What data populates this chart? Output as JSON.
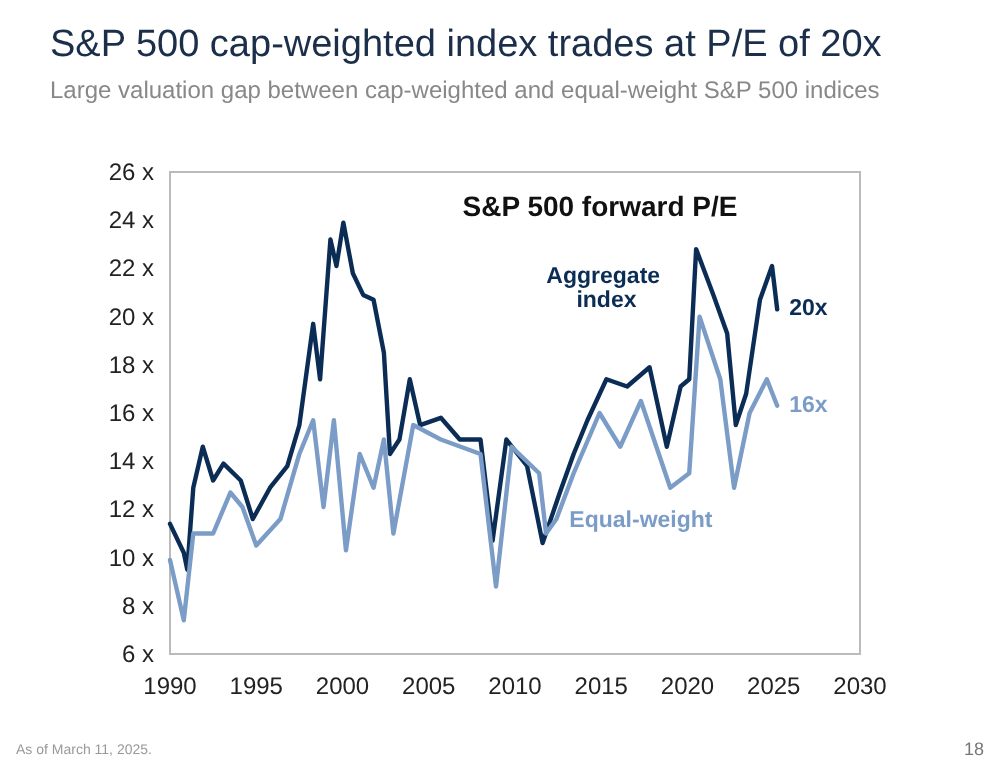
{
  "chart_data": {
    "type": "line",
    "title": "S&P 500 cap-weighted index trades at P/E of 20x",
    "subtitle": "Large valuation gap between cap-weighted and equal-weight S&P 500 indices",
    "xlim": [
      1990,
      2030
    ],
    "xticks": [
      1990,
      1995,
      2000,
      2005,
      2010,
      2015,
      2020,
      2025,
      2030
    ],
    "ylim": [
      6,
      26
    ],
    "yticks": [
      {
        "value": 6,
        "label": "6 x"
      },
      {
        "value": 8,
        "label": "8 x"
      },
      {
        "value": 10,
        "label": "10 x"
      },
      {
        "value": 12,
        "label": "12 x"
      },
      {
        "value": 14,
        "label": "14 x"
      },
      {
        "value": 16,
        "label": "16 x"
      },
      {
        "value": 18,
        "label": "18 x"
      },
      {
        "value": 20,
        "label": "20 x"
      },
      {
        "value": 22,
        "label": "22 x"
      },
      {
        "value": 24,
        "label": "24 x"
      },
      {
        "value": 26,
        "label": "26 x"
      }
    ],
    "grid": false,
    "marker": "none",
    "line_style": "solid",
    "series": [
      {
        "name": "Aggregate index",
        "color": "#0b2d55",
        "x": [
          1990.0,
          1990.8,
          1991.0,
          1991.35,
          1991.9,
          1992.5,
          1993.1,
          1994.1,
          1994.8,
          1995.8,
          1996.8,
          1997.5,
          1998.3,
          1998.7,
          1999.3,
          1999.65,
          2000.05,
          2000.6,
          2001.2,
          2001.8,
          2002.4,
          2002.75,
          2003.3,
          2003.9,
          2004.5,
          2005.7,
          2006.8,
          2008.0,
          2008.7,
          2009.5,
          2010.7,
          2011.6,
          2012.6,
          2013.4,
          2014.2,
          2015.3,
          2016.5,
          2017.8,
          2018.8,
          2019.6,
          2020.1,
          2020.5,
          2021.5,
          2022.3,
          2022.8,
          2023.4,
          2024.2,
          2024.9,
          2025.2
        ],
        "values": [
          11.4,
          10.2,
          9.5,
          12.9,
          14.6,
          13.2,
          13.9,
          13.2,
          11.6,
          12.9,
          13.8,
          15.5,
          19.7,
          17.4,
          23.2,
          22.1,
          23.9,
          21.8,
          20.9,
          20.7,
          18.5,
          14.3,
          14.9,
          17.4,
          15.5,
          15.8,
          14.9,
          14.9,
          10.7,
          14.9,
          13.8,
          10.6,
          12.7,
          14.3,
          15.7,
          17.4,
          17.1,
          17.9,
          14.6,
          17.1,
          17.4,
          22.8,
          20.9,
          19.3,
          15.5,
          16.8,
          20.7,
          22.1,
          20.3
        ]
      },
      {
        "name": "Equal-weight",
        "color": "#7a9cc6",
        "x": [
          1990.0,
          1990.8,
          1991.35,
          1992.5,
          1993.5,
          1994.2,
          1995.0,
          1996.4,
          1997.5,
          1998.3,
          1998.9,
          1999.5,
          2000.2,
          2001.0,
          2001.8,
          2002.4,
          2002.95,
          2004.1,
          2005.7,
          2008.0,
          2008.9,
          2009.8,
          2011.4,
          2011.8,
          2012.4,
          2013.4,
          2014.9,
          2016.1,
          2017.3,
          2019.0,
          2020.1,
          2020.7,
          2021.9,
          2022.7,
          2023.6,
          2024.6,
          2025.2
        ],
        "values": [
          9.9,
          7.4,
          11.0,
          11.0,
          12.7,
          12.1,
          10.5,
          11.6,
          14.3,
          15.7,
          12.1,
          15.7,
          10.3,
          14.3,
          12.9,
          14.9,
          11.0,
          15.5,
          14.9,
          14.3,
          8.8,
          14.6,
          13.5,
          11.0,
          11.6,
          13.5,
          16.0,
          14.6,
          16.5,
          12.9,
          13.5,
          20.0,
          17.4,
          12.9,
          16.0,
          17.4,
          16.3
        ]
      }
    ],
    "annotations": [
      "S&P 500 forward P/E",
      "As of March 11, 2025.",
      "18",
      {
        "text": "20x",
        "x": 2025.2,
        "y": 20.3
      },
      {
        "text": "16x",
        "x": 2025.2,
        "y": 16.3
      }
    ]
  }
}
